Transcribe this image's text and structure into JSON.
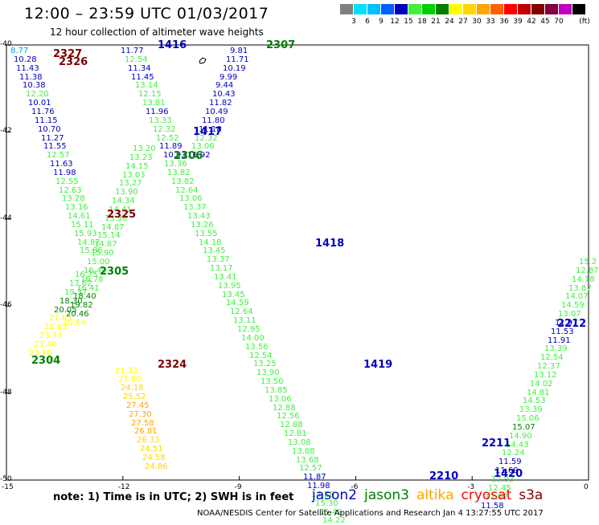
{
  "header": {
    "title": "12:00 – 23:59 UTC 01/03/2017",
    "subtitle": "12 hour collection of altimeter wave heights"
  },
  "colorbar": {
    "unit": "(ft)",
    "colors": [
      "#808080",
      "#00e0ff",
      "#00c0ff",
      "#0060ff",
      "#0000c0",
      "#40f040",
      "#00d000",
      "#008000",
      "#ffff00",
      "#ffd700",
      "#ffa500",
      "#ff6000",
      "#ff0000",
      "#c00000",
      "#800000",
      "#800040",
      "#c000c0",
      "#000000"
    ],
    "labels": [
      "3",
      "6",
      "9",
      "12",
      "15",
      "18",
      "21",
      "24",
      "27",
      "30",
      "33",
      "36",
      "39",
      "42",
      "45",
      "70"
    ]
  },
  "axes": {
    "x_ticks": [
      "-15",
      "-12",
      "-9",
      "-6",
      "-3",
      "0"
    ],
    "y_ticks": [
      "-40",
      "-42",
      "-44",
      "-46",
      "-48",
      "-50"
    ]
  },
  "pass_labels": [
    {
      "text": "1416",
      "lon": -11.1,
      "lat": -40.0,
      "color": "#0000c0"
    },
    {
      "text": "2307",
      "lon": -8.3,
      "lat": -40.0,
      "color": "#008000"
    },
    {
      "text": "2327",
      "lon": -13.8,
      "lat": -40.2,
      "color": "#800000"
    },
    {
      "text": "2326",
      "lon": -13.65,
      "lat": -40.38,
      "color": "#800000"
    },
    {
      "text": "1417",
      "lon": -10.2,
      "lat": -42.0,
      "color": "#0000c0"
    },
    {
      "text": "2306",
      "lon": -10.7,
      "lat": -42.55,
      "color": "#008000"
    },
    {
      "text": "2325",
      "lon": -12.4,
      "lat": -43.9,
      "color": "#800000"
    },
    {
      "text": "1418",
      "lon": -7.05,
      "lat": -44.55,
      "color": "#0000c0"
    },
    {
      "text": "2305",
      "lon": -12.6,
      "lat": -45.2,
      "color": "#008000"
    },
    {
      "text": "2304",
      "lon": -14.35,
      "lat": -47.25,
      "color": "#008000"
    },
    {
      "text": "2324",
      "lon": -11.1,
      "lat": -47.35,
      "color": "#800000"
    },
    {
      "text": "1419",
      "lon": -5.8,
      "lat": -47.35,
      "color": "#0000c0"
    },
    {
      "text": "2212",
      "lon": -0.8,
      "lat": -46.4,
      "color": "#0000c0"
    },
    {
      "text": "2211",
      "lon": -2.75,
      "lat": -49.15,
      "color": "#0000c0"
    },
    {
      "text": "2210",
      "lon": -4.1,
      "lat": -49.9,
      "color": "#0000c0"
    },
    {
      "text": "1420",
      "lon": -2.45,
      "lat": -49.85,
      "color": "#0000c0"
    }
  ],
  "tracks": [
    {
      "name": "track-2327",
      "color": "#009000",
      "lon0": -14.65,
      "lat0": -40.15,
      "dlon": 0.078,
      "dlat": -0.2,
      "values": [
        "8.77",
        "10.28",
        "11.43",
        "11.38",
        "10.38",
        "12.20",
        "10.01",
        "11.76",
        "11.15",
        "10.70",
        "11.27",
        "11.55",
        "12.57",
        "11.63",
        "11.98",
        "12.55",
        "12.63",
        "13.28",
        "13.16",
        "14.61",
        "15.11",
        "15.93",
        "14.87",
        "15.86"
      ],
      "colors": [
        "#00a0ff",
        "#0000c0",
        "#0000c0",
        "#0000c0",
        "#0000c0",
        "#40f040",
        "#0000c0",
        "#0000c0",
        "#0000c0",
        "#0000c0",
        "#0000c0",
        "#0000c0",
        "#40f040",
        "#0000c0",
        "#0000c0",
        "#40f040",
        "#40f040",
        "#40f040",
        "#40f040",
        "#40f040",
        "#40f040",
        "#40f040",
        "#40f040",
        "#40f040"
      ]
    },
    {
      "name": "track-2304",
      "color": "#40f040",
      "lon0": -13.0,
      "lat0": -45.3,
      "dlon": -0.13,
      "dlat": -0.2,
      "values": [
        "16.75",
        "17.62",
        "19.37",
        "18.30",
        "20.05",
        "21.65",
        "22.63",
        "23.33",
        "23.40",
        "23.10"
      ],
      "colors": [
        "#40f040",
        "#40f040",
        "#40f040",
        "#008000",
        "#008000",
        "#ffff00",
        "#ffff00",
        "#ffff00",
        "#ffff00",
        "#ffff00"
      ]
    },
    {
      "name": "track-2325",
      "color": "#40f040",
      "lon0": -11.5,
      "lat0": -42.4,
      "dlon": -0.09,
      "dlat": -0.2,
      "values": [
        "13.20",
        "13.23",
        "14.15",
        "13.03",
        "13.27",
        "13.90",
        "14.34",
        "14.41",
        "13.98",
        "14.87",
        "15.14",
        "14.87",
        "15.90",
        "15.00",
        "16.49",
        "16.78",
        "16.41",
        "18.40",
        "19.82",
        "20.46",
        "20.64"
      ],
      "colors": [
        "#40f040",
        "#40f040",
        "#40f040",
        "#40f040",
        "#40f040",
        "#40f040",
        "#40f040",
        "#40f040",
        "#40f040",
        "#40f040",
        "#40f040",
        "#40f040",
        "#40f040",
        "#40f040",
        "#40f040",
        "#40f040",
        "#40f040",
        "#008000",
        "#008000",
        "#008000",
        "#ffff00"
      ]
    },
    {
      "name": "track-2324",
      "color": "#ffa500",
      "lon0": -11.95,
      "lat0": -47.5,
      "dlon": 0.07,
      "dlat": -0.2,
      "values": [
        "21.32",
        "21.80",
        "24.18",
        "25.52",
        "27.45",
        "27.30",
        "27.58",
        "26.81",
        "26.33",
        "24.51",
        "24.58",
        "24.86"
      ],
      "colors": [
        "#ffff00",
        "#ffff00",
        "#ffd700",
        "#ffd700",
        "#ffa500",
        "#ffa500",
        "#ffa500",
        "#ffa500",
        "#ffd700",
        "#ffd700",
        "#ffd700",
        "#ffd700"
      ]
    },
    {
      "name": "track-1416",
      "color": "#0000c0",
      "lon0": -11.8,
      "lat0": -40.15,
      "dlon": 0.09,
      "dlat": -0.2,
      "values": [
        "11.77",
        "12.54",
        "11.34",
        "11.45",
        "13.14",
        "12.15",
        "13.81",
        "11.96",
        "13.33",
        "12.32",
        "12.52",
        "11.89",
        "10.93"
      ],
      "colors": [
        "#0000c0",
        "#40f040",
        "#0000c0",
        "#0000c0",
        "#40f040",
        "#40f040",
        "#40f040",
        "#0000c0",
        "#40f040",
        "#40f040",
        "#40f040",
        "#0000c0",
        "#0000c0"
      ]
    },
    {
      "name": "track-2307",
      "color": "#0000c0",
      "lon0": -9.0,
      "lat0": -40.15,
      "dlon": -0.09,
      "dlat": -0.2,
      "values": [
        "9.81",
        "11.71",
        "10.19",
        "9.99",
        "9.44",
        "10.43",
        "11.82",
        "10.49",
        "11.80",
        "11.18",
        "12.32",
        "13.06",
        "11.92"
      ],
      "colors": [
        "#0000c0",
        "#0000c0",
        "#0000c0",
        "#0000c0",
        "#0000c0",
        "#0000c0",
        "#0000c0",
        "#0000c0",
        "#0000c0",
        "#0000c0",
        "#40f040",
        "#40f040",
        "#0000c0"
      ]
    },
    {
      "name": "track-1417",
      "color": "#40f040",
      "lon0": -10.7,
      "lat0": -42.75,
      "dlon": 0.1,
      "dlat": -0.2,
      "values": [
        "13.36",
        "13.82",
        "13.82",
        "12.64",
        "13.06",
        "13.37",
        "13.43",
        "13.26",
        "13.55",
        "14.18",
        "13.45",
        "13.37",
        "13.17",
        "13.41",
        "13.95",
        "13.45",
        "14.59",
        "12.64",
        "13.11",
        "12.95",
        "14.00",
        "13.56",
        "12.54",
        "13.25",
        "13.90",
        "13.50",
        "13.85",
        "13.06",
        "12.88",
        "12.56",
        "12.88",
        "12.81",
        "13.08",
        "13.68",
        "13.68",
        "12.57",
        "11.87",
        "11.98",
        "14.26",
        "15.30",
        "15.49",
        "14.22"
      ],
      "colors": [
        "#40f040",
        "#40f040",
        "#40f040",
        "#40f040",
        "#40f040",
        "#40f040",
        "#40f040",
        "#40f040",
        "#40f040",
        "#40f040",
        "#40f040",
        "#40f040",
        "#40f040",
        "#40f040",
        "#40f040",
        "#40f040",
        "#40f040",
        "#40f040",
        "#40f040",
        "#40f040",
        "#40f040",
        "#40f040",
        "#40f040",
        "#40f040",
        "#40f040",
        "#40f040",
        "#40f040",
        "#40f040",
        "#40f040",
        "#40f040",
        "#40f040",
        "#40f040",
        "#40f040",
        "#40f040",
        "#40f040",
        "#40f040",
        "#0000c0",
        "#0000c0",
        "#40f040",
        "#40f040",
        "#40f040",
        "#40f040"
      ]
    },
    {
      "name": "track-2212",
      "color": "#40f040",
      "lon0": 0.0,
      "lat0": -45.0,
      "dlon": -0.09,
      "dlat": -0.2,
      "values": [
        "15.2",
        "12.87",
        "14.18",
        "13.87",
        "14.07",
        "14.59",
        "13.07",
        "11.97",
        "11.53",
        "11.91",
        "13.39",
        "12.54",
        "12.37",
        "13.12",
        "14.02",
        "14.81",
        "14.53",
        "13.39",
        "15.06",
        "15.07",
        "14.90",
        "14.43",
        "12.24",
        "11.59",
        "11.69",
        "12.93",
        "12.45",
        "12.07",
        "11.58"
      ],
      "colors": [
        "#40f040",
        "#40f040",
        "#40f040",
        "#40f040",
        "#40f040",
        "#40f040",
        "#40f040",
        "#0000c0",
        "#0000c0",
        "#0000c0",
        "#40f040",
        "#40f040",
        "#40f040",
        "#40f040",
        "#40f040",
        "#40f040",
        "#40f040",
        "#40f040",
        "#40f040",
        "#008000",
        "#40f040",
        "#40f040",
        "#40f040",
        "#0000c0",
        "#0000c0",
        "#40f040",
        "#40f040",
        "#40f040",
        "#0000c0"
      ]
    }
  ],
  "footer": {
    "note": "note: 1) Time is in UTC; 2) SWH is in feet",
    "satellites": [
      {
        "name": "jason2",
        "color": "#0000c0"
      },
      {
        "name": "jason3",
        "color": "#008000"
      },
      {
        "name": "altika",
        "color": "#ffa500"
      },
      {
        "name": "cryosat",
        "color": "#ff0000"
      },
      {
        "name": "s3a",
        "color": "#800000"
      }
    ],
    "credit": "NOAA/NESDIS Center for Satellite Applications and Research   Jan  4 13:27:55 UTC 2017"
  }
}
